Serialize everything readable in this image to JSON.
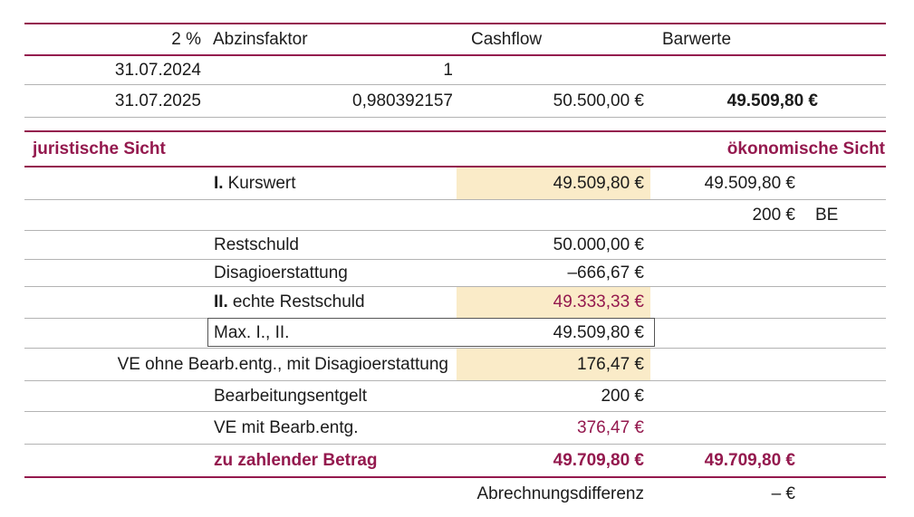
{
  "colors": {
    "accent": "#94194e",
    "highlight": "#faebc8",
    "grid_line": "#b3b3b3",
    "text": "#1b1b1b"
  },
  "discount_table": {
    "rate_header": "2 %",
    "factor_header": "Abzinsfaktor",
    "cashflow_header": "Cashflow",
    "barwerte_header": "Barwerte",
    "rows": [
      {
        "date": "31.07.2024",
        "factor": "1",
        "cashflow": "",
        "barwert": ""
      },
      {
        "date": "31.07.2025",
        "factor": "0,980392157",
        "cashflow": "50.500,00 €",
        "barwert": "49.509,80 €"
      }
    ]
  },
  "section_headers": {
    "left": "juristische Sicht",
    "right": "ökonomische Sicht"
  },
  "calc_rows": {
    "kurswert": {
      "prefix": "I.",
      "label": "Kurswert",
      "value": "49.509,80 €",
      "right_value": "49.509,80 €"
    },
    "be": {
      "right_value": "200 €",
      "right_suffix": "BE"
    },
    "restschuld": {
      "label": "Restschuld",
      "value": "50.000,00 €"
    },
    "disagio": {
      "label": "Disagioerstattung",
      "value": "–666,67 €"
    },
    "echte_restschuld": {
      "prefix": "II.",
      "label": "echte Restschuld",
      "value": "49.333,33 €"
    },
    "max": {
      "label": "Max. I., II.",
      "value": "49.509,80 €"
    },
    "ve_ohne": {
      "label": "VE ohne Bearb.entg., mit Disagioerstattung",
      "value": "176,47 €"
    },
    "bearbeitungsentgelt": {
      "label": "Bearbeitungsentgelt",
      "value": "200 €"
    },
    "ve_mit": {
      "label": "VE mit Bearb.entg.",
      "value": "376,47 €"
    },
    "zu_zahlen": {
      "label": "zu zahlender Betrag",
      "value": "49.709,80 €",
      "right_value": "49.709,80 €"
    },
    "differenz": {
      "label": "Abrechnungsdifferenz",
      "right_value": "– €"
    }
  }
}
